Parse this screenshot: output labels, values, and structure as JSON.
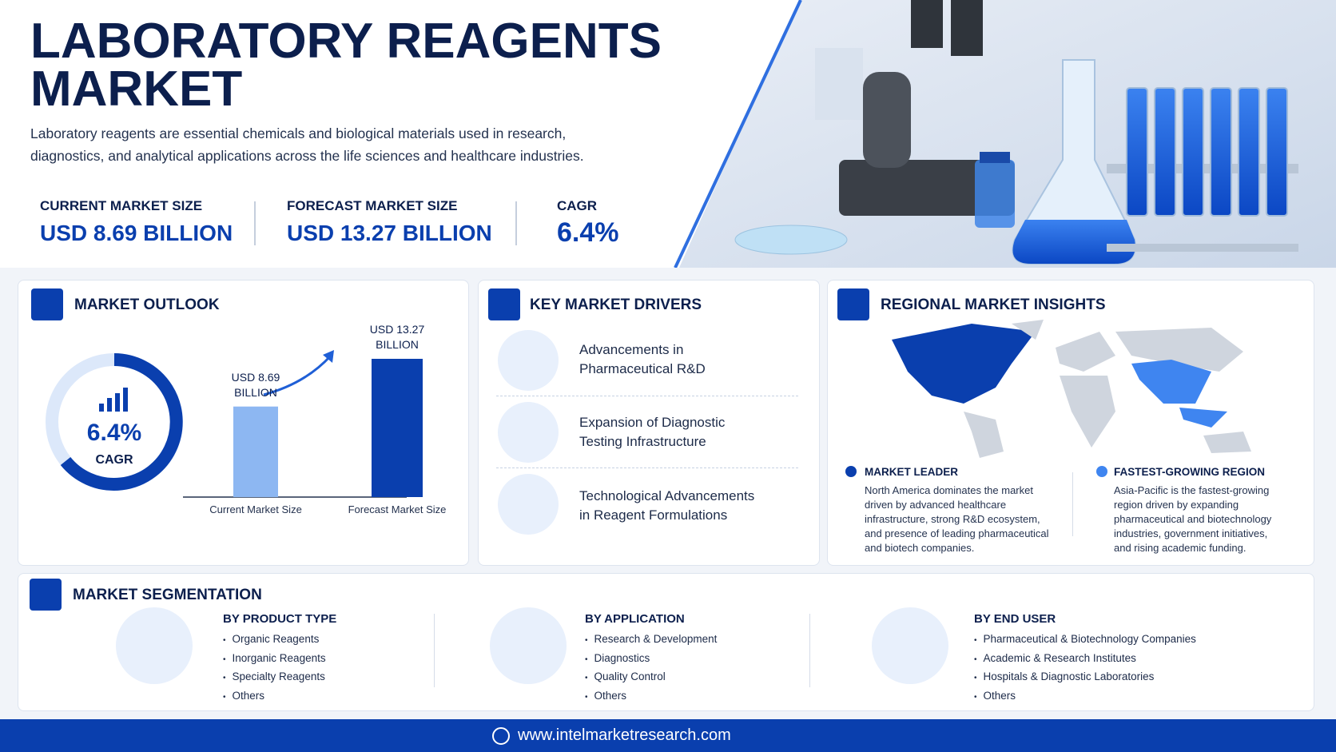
{
  "header": {
    "title_lines": [
      "LABORATORY REAGENTS",
      "MARKET"
    ],
    "description_lines": [
      "Laboratory reagents are essential chemicals and biological materials used in research,",
      "diagnostics, and analytical applications across the life sciences and healthcare industries."
    ],
    "stats": [
      {
        "label": "CURRENT MARKET SIZE",
        "value": "USD 8.69 BILLION"
      },
      {
        "label": "FORECAST MARKET SIZE",
        "value": "USD 13.27 BILLION"
      },
      {
        "label": "CAGR",
        "value": "6.4%"
      }
    ]
  },
  "outlook": {
    "title": "MARKET OUTLOOK",
    "cagr_value": "6.4%",
    "cagr_label": "CAGR",
    "chart": {
      "type": "bar",
      "categories": [
        "Current Market Size",
        "Forecast Market Size"
      ],
      "values": [
        8.69,
        13.27
      ],
      "value_labels": [
        "USD 8.69 BILLION",
        "USD 13.27 BILLION"
      ],
      "colors": [
        "#8db7f2",
        "#0a3fae"
      ]
    }
  },
  "drivers": {
    "title": "KEY MARKET DRIVERS",
    "items": [
      [
        "Advancements in",
        "Pharmaceutical R&D"
      ],
      [
        "Expansion of Diagnostic",
        "Testing Infrastructure"
      ],
      [
        "Technological Advancements",
        "in Reagent Formulations"
      ]
    ]
  },
  "regional": {
    "title": "REGIONAL MARKET INSIGHTS",
    "leader": {
      "heading": "MARKET LEADER",
      "lines": [
        "North America dominates the market",
        "driven by advanced healthcare",
        "infrastructure, strong R&D ecosystem,",
        "and presence of leading pharmaceutical",
        "and biotech companies."
      ]
    },
    "fastest": {
      "heading": "FASTEST-GROWING REGION",
      "lines": [
        "Asia-Pacific is the fastest-growing",
        "region driven by expanding",
        "pharmaceutical and biotechnology",
        "industries, government initiatives,",
        "and rising academic funding."
      ]
    }
  },
  "segmentation": {
    "title": "MARKET SEGMENTATION",
    "groups": [
      {
        "heading": "BY PRODUCT TYPE",
        "items": [
          "Organic Reagents",
          "Inorganic Reagents",
          "Specialty Reagents",
          "Others"
        ]
      },
      {
        "heading": "BY APPLICATION",
        "items": [
          "Research & Development",
          "Diagnostics",
          "Quality Control",
          "Others"
        ]
      },
      {
        "heading": "BY END USER",
        "items": [
          "Pharmaceutical & Biotechnology Companies",
          "Academic & Research Institutes",
          "Hospitals & Diagnostic Laboratories",
          "Others"
        ]
      }
    ]
  },
  "footer": {
    "url": "www.intelmarketresearch.com"
  }
}
